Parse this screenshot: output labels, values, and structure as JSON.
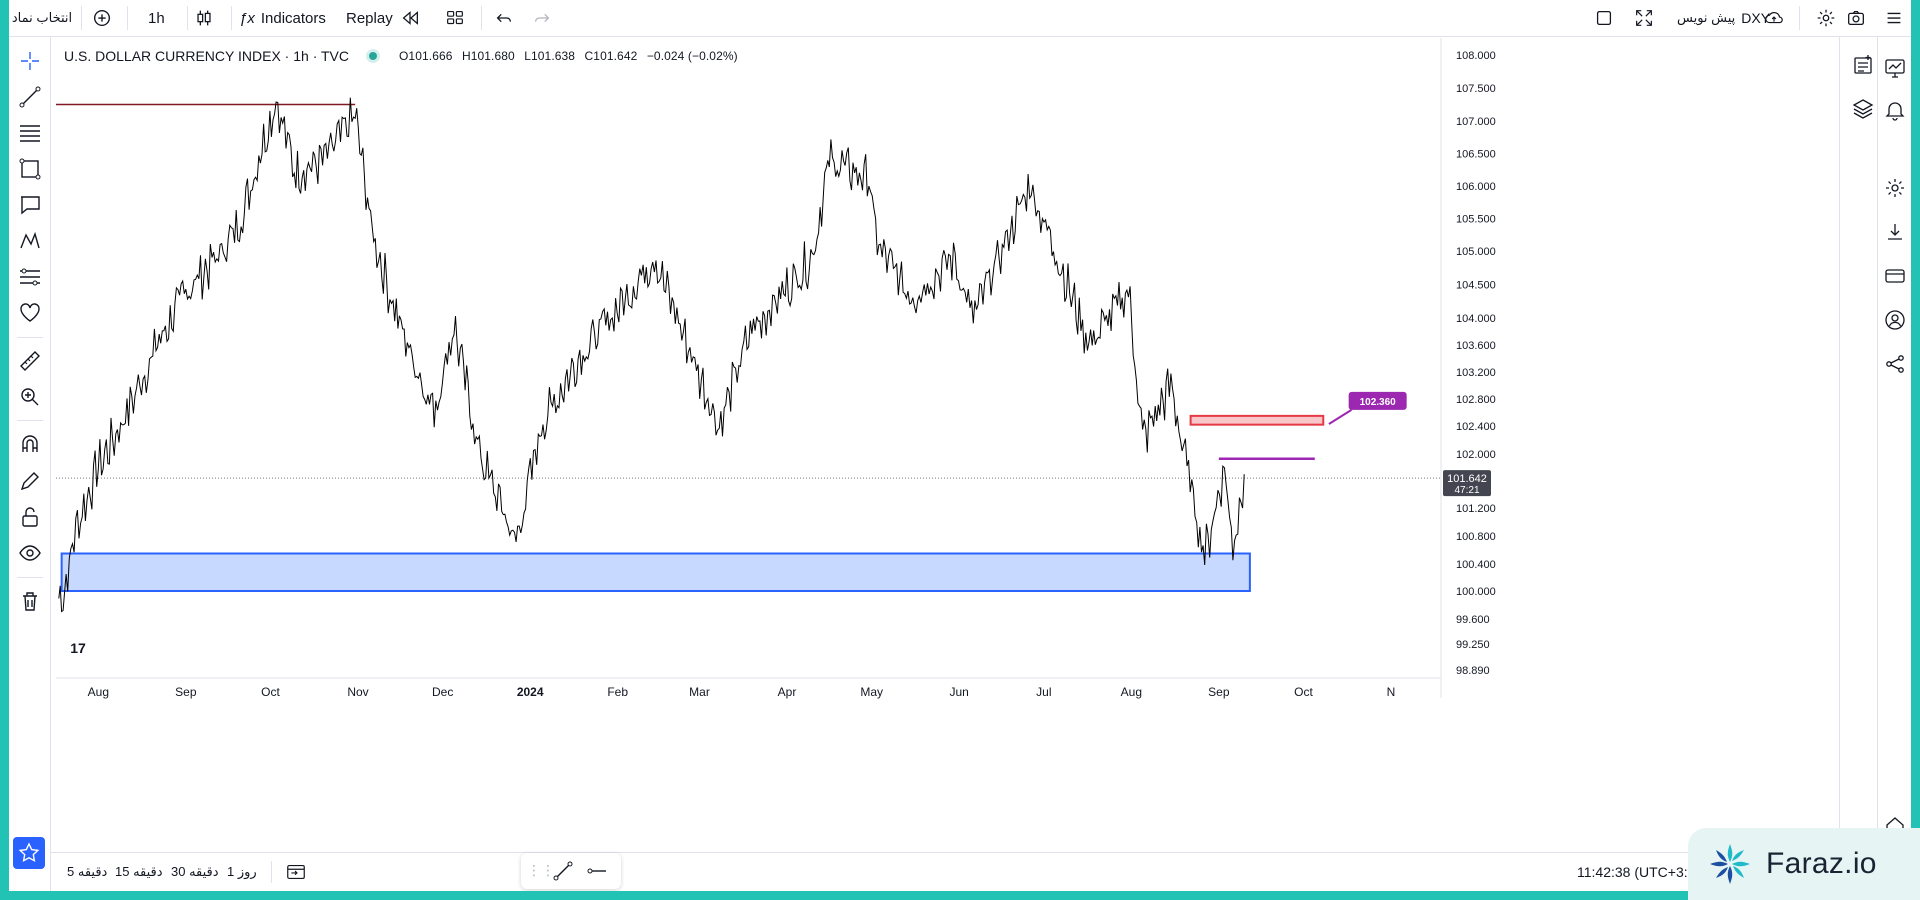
{
  "topbar": {
    "symbol_picker": "انتخاب نماد",
    "interval": "1h",
    "indicators_label": "Indicators",
    "replay_label": "Replay",
    "symbol": "DXY",
    "write_idea": "پیش نویس"
  },
  "legend": {
    "title": "U.S. DOLLAR CURRENCY INDEX · 1h · TVC",
    "open": "O101.666",
    "high": "H101.680",
    "low": "L101.638",
    "close": "C101.642",
    "change": "−0.024 (−0.02%)"
  },
  "chart_data": {
    "type": "line",
    "title": "U.S. DOLLAR CURRENCY INDEX · 1h · TVC",
    "x_tick_labels": [
      "Aug",
      "Sep",
      "Oct",
      "Nov",
      "Dec",
      "2024",
      "Feb",
      "Mar",
      "Apr",
      "May",
      "Jun",
      "Jul",
      "Aug",
      "Sep",
      "Oct",
      "N"
    ],
    "y_tick_labels": [
      "108.000",
      "107.500",
      "107.000",
      "106.500",
      "106.000",
      "105.500",
      "105.000",
      "104.500",
      "104.000",
      "103.600",
      "103.200",
      "102.800",
      "102.400",
      "102.000",
      "101.200",
      "100.800",
      "100.400",
      "100.000",
      "99.600",
      "99.250",
      "98.890"
    ],
    "series": [
      {
        "values": [
          [
            "2023-07-18",
            99.9
          ],
          [
            "2023-07-20",
            100.0
          ],
          [
            "2023-07-24",
            100.9
          ],
          [
            "2023-08-01",
            101.8
          ],
          [
            "2023-08-10",
            102.5
          ],
          [
            "2023-08-22",
            103.6
          ],
          [
            "2023-09-01",
            104.4
          ],
          [
            "2023-09-12",
            104.9
          ],
          [
            "2023-09-20",
            105.4
          ],
          [
            "2023-09-28",
            106.6
          ],
          [
            "2023-10-03",
            107.3
          ],
          [
            "2023-10-10",
            106.2
          ],
          [
            "2023-10-20",
            106.4
          ],
          [
            "2023-10-31",
            107.1
          ],
          [
            "2023-11-06",
            105.3
          ],
          [
            "2023-11-14",
            104.1
          ],
          [
            "2023-11-28",
            102.6
          ],
          [
            "2023-12-05",
            103.9
          ],
          [
            "2023-12-14",
            102.0
          ],
          [
            "2023-12-27",
            100.7
          ],
          [
            "2024-01-05",
            102.4
          ],
          [
            "2024-01-18",
            103.4
          ],
          [
            "2024-02-02",
            104.2
          ],
          [
            "2024-02-14",
            104.9
          ],
          [
            "2024-02-22",
            104.0
          ],
          [
            "2024-03-08",
            102.4
          ],
          [
            "2024-03-19",
            103.8
          ],
          [
            "2024-04-10",
            104.9
          ],
          [
            "2024-04-16",
            106.4
          ],
          [
            "2024-04-30",
            106.1
          ],
          [
            "2024-05-03",
            105.1
          ],
          [
            "2024-05-15",
            104.3
          ],
          [
            "2024-05-30",
            104.9
          ],
          [
            "2024-06-06",
            104.0
          ],
          [
            "2024-06-26",
            106.0
          ],
          [
            "2024-07-05",
            105.0
          ],
          [
            "2024-07-17",
            103.6
          ],
          [
            "2024-07-31",
            104.4
          ],
          [
            "2024-08-05",
            102.2
          ],
          [
            "2024-08-15",
            103.0
          ],
          [
            "2024-08-27",
            100.5
          ],
          [
            "2024-09-03",
            101.8
          ],
          [
            "2024-09-06",
            100.6
          ],
          [
            "2024-09-10",
            101.7
          ]
        ]
      }
    ],
    "current_price": "101.642",
    "countdown": "47:21",
    "alert_label": "102.360",
    "zones": [
      {
        "color": "#c8d9ff",
        "border": "#2962ff",
        "y_range": [
          100.0,
          100.55
        ],
        "x_range": [
          "2023-07-19",
          "2024-09-12"
        ]
      },
      {
        "color": "#f8c7c9",
        "border": "#e53945",
        "y_range": [
          102.42,
          102.55
        ],
        "x_range": [
          "2024-08-22",
          "2024-10-08"
        ]
      }
    ],
    "lines": [
      {
        "color": "#801922",
        "y": 107.25,
        "x_range": [
          "2023-07-17",
          "2023-10-31"
        ]
      },
      {
        "color": "#9c27b0",
        "y": 101.93,
        "x_range": [
          "2024-09-01",
          "2024-10-05"
        ]
      }
    ],
    "colors": {
      "series": "#000000",
      "last_price_label": "#434651",
      "alert": "#9c27b0"
    }
  },
  "bottombar": {
    "ranges": [
      "1 روز",
      "30 دقیقه",
      "15 دقیقه",
      "5 دقیقه"
    ],
    "clock": "11:42:38 (UTC+3:30)"
  },
  "watermark": "Faraz.io"
}
